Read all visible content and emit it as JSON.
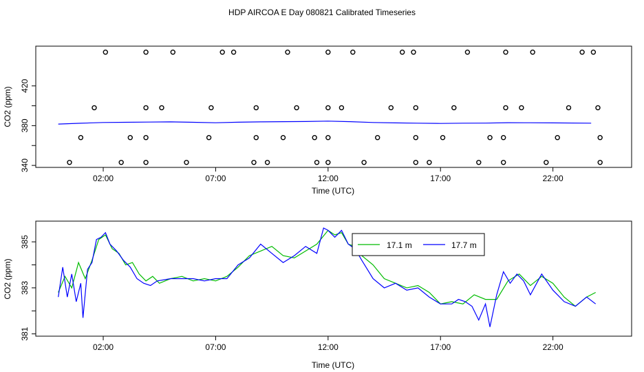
{
  "page_title": "HDP AIRCOA E  Day 080821  Calibrated Timeseries",
  "chart_data": [
    {
      "type": "scatter",
      "xlabel": "Time (UTC)",
      "ylabel": "CO2 (ppm)",
      "x_unit": "hours UTC",
      "xlim": [
        -1.0,
        25.5
      ],
      "ylim": [
        338,
        460
      ],
      "x_ticks": [
        2,
        7,
        12,
        17,
        22
      ],
      "x_tick_labels": [
        "02:00",
        "07:00",
        "12:00",
        "17:00",
        "22:00"
      ],
      "y_ticks": [
        340,
        380,
        420
      ],
      "y_minor_ticks": [
        360,
        400
      ],
      "y_tick_labels": [
        "340",
        "380",
        "420"
      ],
      "marker": "open-circle",
      "calibration_points": {
        "levels": [
          343,
          368,
          398,
          454
        ],
        "x": [
          [
            0.5,
            2.8,
            3.9,
            5.7,
            8.7,
            9.3,
            11.5,
            12.0,
            13.6,
            15.9,
            16.5,
            18.7,
            19.8,
            21.7,
            24.1
          ],
          [
            1.0,
            3.2,
            3.9,
            6.7,
            8.8,
            10.0,
            11.4,
            12.0,
            14.2,
            15.9,
            17.1,
            19.2,
            19.8,
            22.2,
            24.1
          ],
          [
            1.6,
            3.9,
            4.6,
            6.8,
            8.8,
            10.6,
            12.0,
            12.6,
            14.8,
            15.9,
            17.6,
            19.9,
            20.6,
            22.7,
            24.0
          ],
          [
            2.1,
            3.9,
            5.1,
            7.3,
            7.8,
            10.2,
            12.0,
            13.1,
            15.3,
            15.8,
            18.2,
            19.9,
            21.1,
            23.3,
            23.8
          ]
        ]
      },
      "series": [
        {
          "name": "17.7 m",
          "color": "#0000ff",
          "x": [
            0,
            1,
            2,
            3,
            4,
            5,
            6,
            7,
            8,
            9,
            10,
            11,
            12,
            13,
            14,
            15,
            16,
            17,
            18,
            19,
            20,
            21,
            22,
            23.7
          ],
          "y": [
            381.6,
            382.4,
            383.2,
            383.4,
            383.6,
            383.8,
            383.4,
            382.9,
            383.5,
            383.8,
            384.0,
            384.2,
            384.6,
            384.0,
            383.2,
            382.8,
            382.5,
            382.2,
            382.5,
            382.6,
            383.0,
            382.9,
            382.8,
            382.5
          ]
        }
      ]
    },
    {
      "type": "line",
      "xlabel": "Time (UTC)",
      "ylabel": "CO2 (ppm)",
      "x_unit": "hours UTC",
      "xlim": [
        -1.0,
        25.5
      ],
      "ylim": [
        380.9,
        385.9
      ],
      "x_ticks": [
        2,
        7,
        12,
        17,
        22
      ],
      "x_tick_labels": [
        "02:00",
        "07:00",
        "12:00",
        "17:00",
        "22:00"
      ],
      "y_ticks": [
        381,
        383,
        385
      ],
      "y_minor_ticks": [
        382,
        384
      ],
      "y_tick_labels": [
        "381",
        "383",
        "385"
      ],
      "legend": "top-right",
      "series": [
        {
          "name": "17.1 m",
          "color": "#00bb00",
          "x": [
            0,
            0.3,
            0.6,
            0.9,
            1.2,
            1.5,
            1.8,
            2.1,
            2.4,
            2.7,
            3.0,
            3.3,
            3.6,
            3.9,
            4.2,
            4.5,
            5,
            5.5,
            6,
            6.5,
            7,
            7.5,
            8,
            8.5,
            9,
            9.5,
            10,
            10.5,
            11,
            11.5,
            12,
            12.3,
            12.6,
            12.9,
            13.2,
            13.5,
            14,
            14.5,
            15,
            15.5,
            16,
            16.5,
            17,
            17.5,
            18,
            18.5,
            19,
            19.5,
            20,
            20.5,
            21,
            21.5,
            22,
            22.5,
            23,
            23.5,
            23.9
          ],
          "y": [
            382.8,
            383.5,
            383.0,
            384.1,
            383.4,
            384.2,
            385.1,
            385.3,
            384.7,
            384.5,
            384.0,
            384.1,
            383.6,
            383.3,
            383.5,
            383.2,
            383.4,
            383.5,
            383.3,
            383.4,
            383.3,
            383.5,
            383.9,
            384.4,
            384.6,
            384.8,
            384.4,
            384.3,
            384.6,
            384.9,
            385.5,
            385.3,
            385.4,
            384.9,
            384.8,
            384.4,
            384.0,
            383.4,
            383.2,
            383.0,
            383.1,
            382.8,
            382.3,
            382.4,
            382.3,
            382.7,
            382.5,
            382.5,
            383.3,
            383.6,
            383.1,
            383.5,
            383.2,
            382.6,
            382.2,
            382.6,
            382.8
          ]
        },
        {
          "name": "17.7 m",
          "color": "#0000ff",
          "x": [
            0,
            0.2,
            0.4,
            0.6,
            0.8,
            1.0,
            1.1,
            1.3,
            1.5,
            1.7,
            1.9,
            2.1,
            2.3,
            2.6,
            2.9,
            3.2,
            3.5,
            3.8,
            4.1,
            4.4,
            5,
            5.5,
            6,
            6.5,
            7,
            7.5,
            8,
            8.5,
            9,
            9.5,
            10,
            10.5,
            11,
            11.5,
            11.8,
            12,
            12.3,
            12.6,
            12.9,
            13.2,
            13.5,
            14,
            14.5,
            15,
            15.5,
            16,
            16.5,
            17,
            17.5,
            17.8,
            18.1,
            18.4,
            18.7,
            19.0,
            19.2,
            19.5,
            19.8,
            20.1,
            20.4,
            20.7,
            21,
            21.5,
            22,
            22.5,
            23,
            23.5,
            23.9
          ],
          "y": [
            382.6,
            383.9,
            382.6,
            383.6,
            382.4,
            383.2,
            381.7,
            383.8,
            384.1,
            385.1,
            385.2,
            385.4,
            384.9,
            384.6,
            384.2,
            383.9,
            383.4,
            383.2,
            383.1,
            383.3,
            383.4,
            383.4,
            383.4,
            383.3,
            383.4,
            383.4,
            384.0,
            384.3,
            384.9,
            384.5,
            384.1,
            384.4,
            384.8,
            384.5,
            385.6,
            385.5,
            385.2,
            385.5,
            384.9,
            384.7,
            384.2,
            383.4,
            383.0,
            383.2,
            382.9,
            383.0,
            382.6,
            382.3,
            382.3,
            382.5,
            382.4,
            382.2,
            381.6,
            382.3,
            381.3,
            382.7,
            383.7,
            383.2,
            383.6,
            383.3,
            382.7,
            383.6,
            382.9,
            382.4,
            382.2,
            382.6,
            382.3
          ]
        }
      ]
    }
  ]
}
